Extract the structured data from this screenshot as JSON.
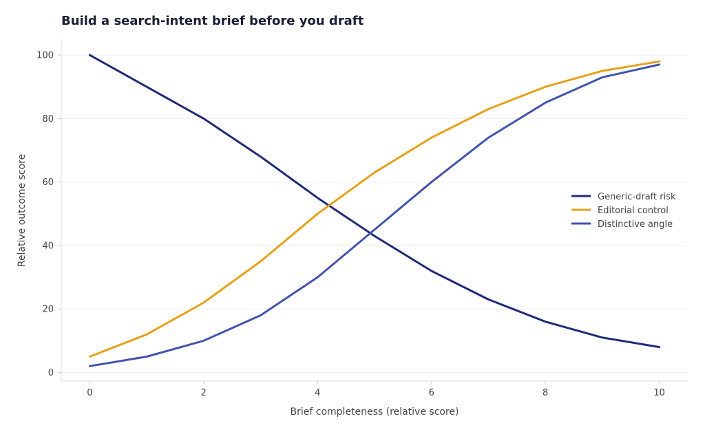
{
  "chart_data": {
    "type": "line",
    "title": "Build a search-intent brief before you draft",
    "xlabel": "Brief completeness (relative score)",
    "ylabel": "Relative outcome score",
    "x": [
      0,
      1,
      2,
      3,
      4,
      5,
      6,
      7,
      8,
      9,
      10
    ],
    "xlim": [
      -0.5,
      10.5
    ],
    "ylim": [
      -2.7,
      105
    ],
    "xticks": [
      0,
      2,
      4,
      6,
      8,
      10
    ],
    "yticks": [
      0,
      20,
      40,
      60,
      80,
      100
    ],
    "grid": true,
    "legend_position": "right",
    "series": [
      {
        "name": "Generic-draft risk",
        "color": "#1f2a78",
        "values": [
          100,
          90,
          80,
          68,
          55,
          43,
          32,
          23,
          16,
          11,
          8
        ]
      },
      {
        "name": "Editorial control",
        "color": "#e6a11a",
        "values": [
          5,
          12,
          22,
          35,
          50,
          63,
          74,
          83,
          90,
          95,
          98
        ]
      },
      {
        "name": "Distinctive angle",
        "color": "#4353ad",
        "values": [
          2,
          5,
          10,
          18,
          30,
          45,
          60,
          74,
          85,
          93,
          97
        ]
      }
    ]
  }
}
